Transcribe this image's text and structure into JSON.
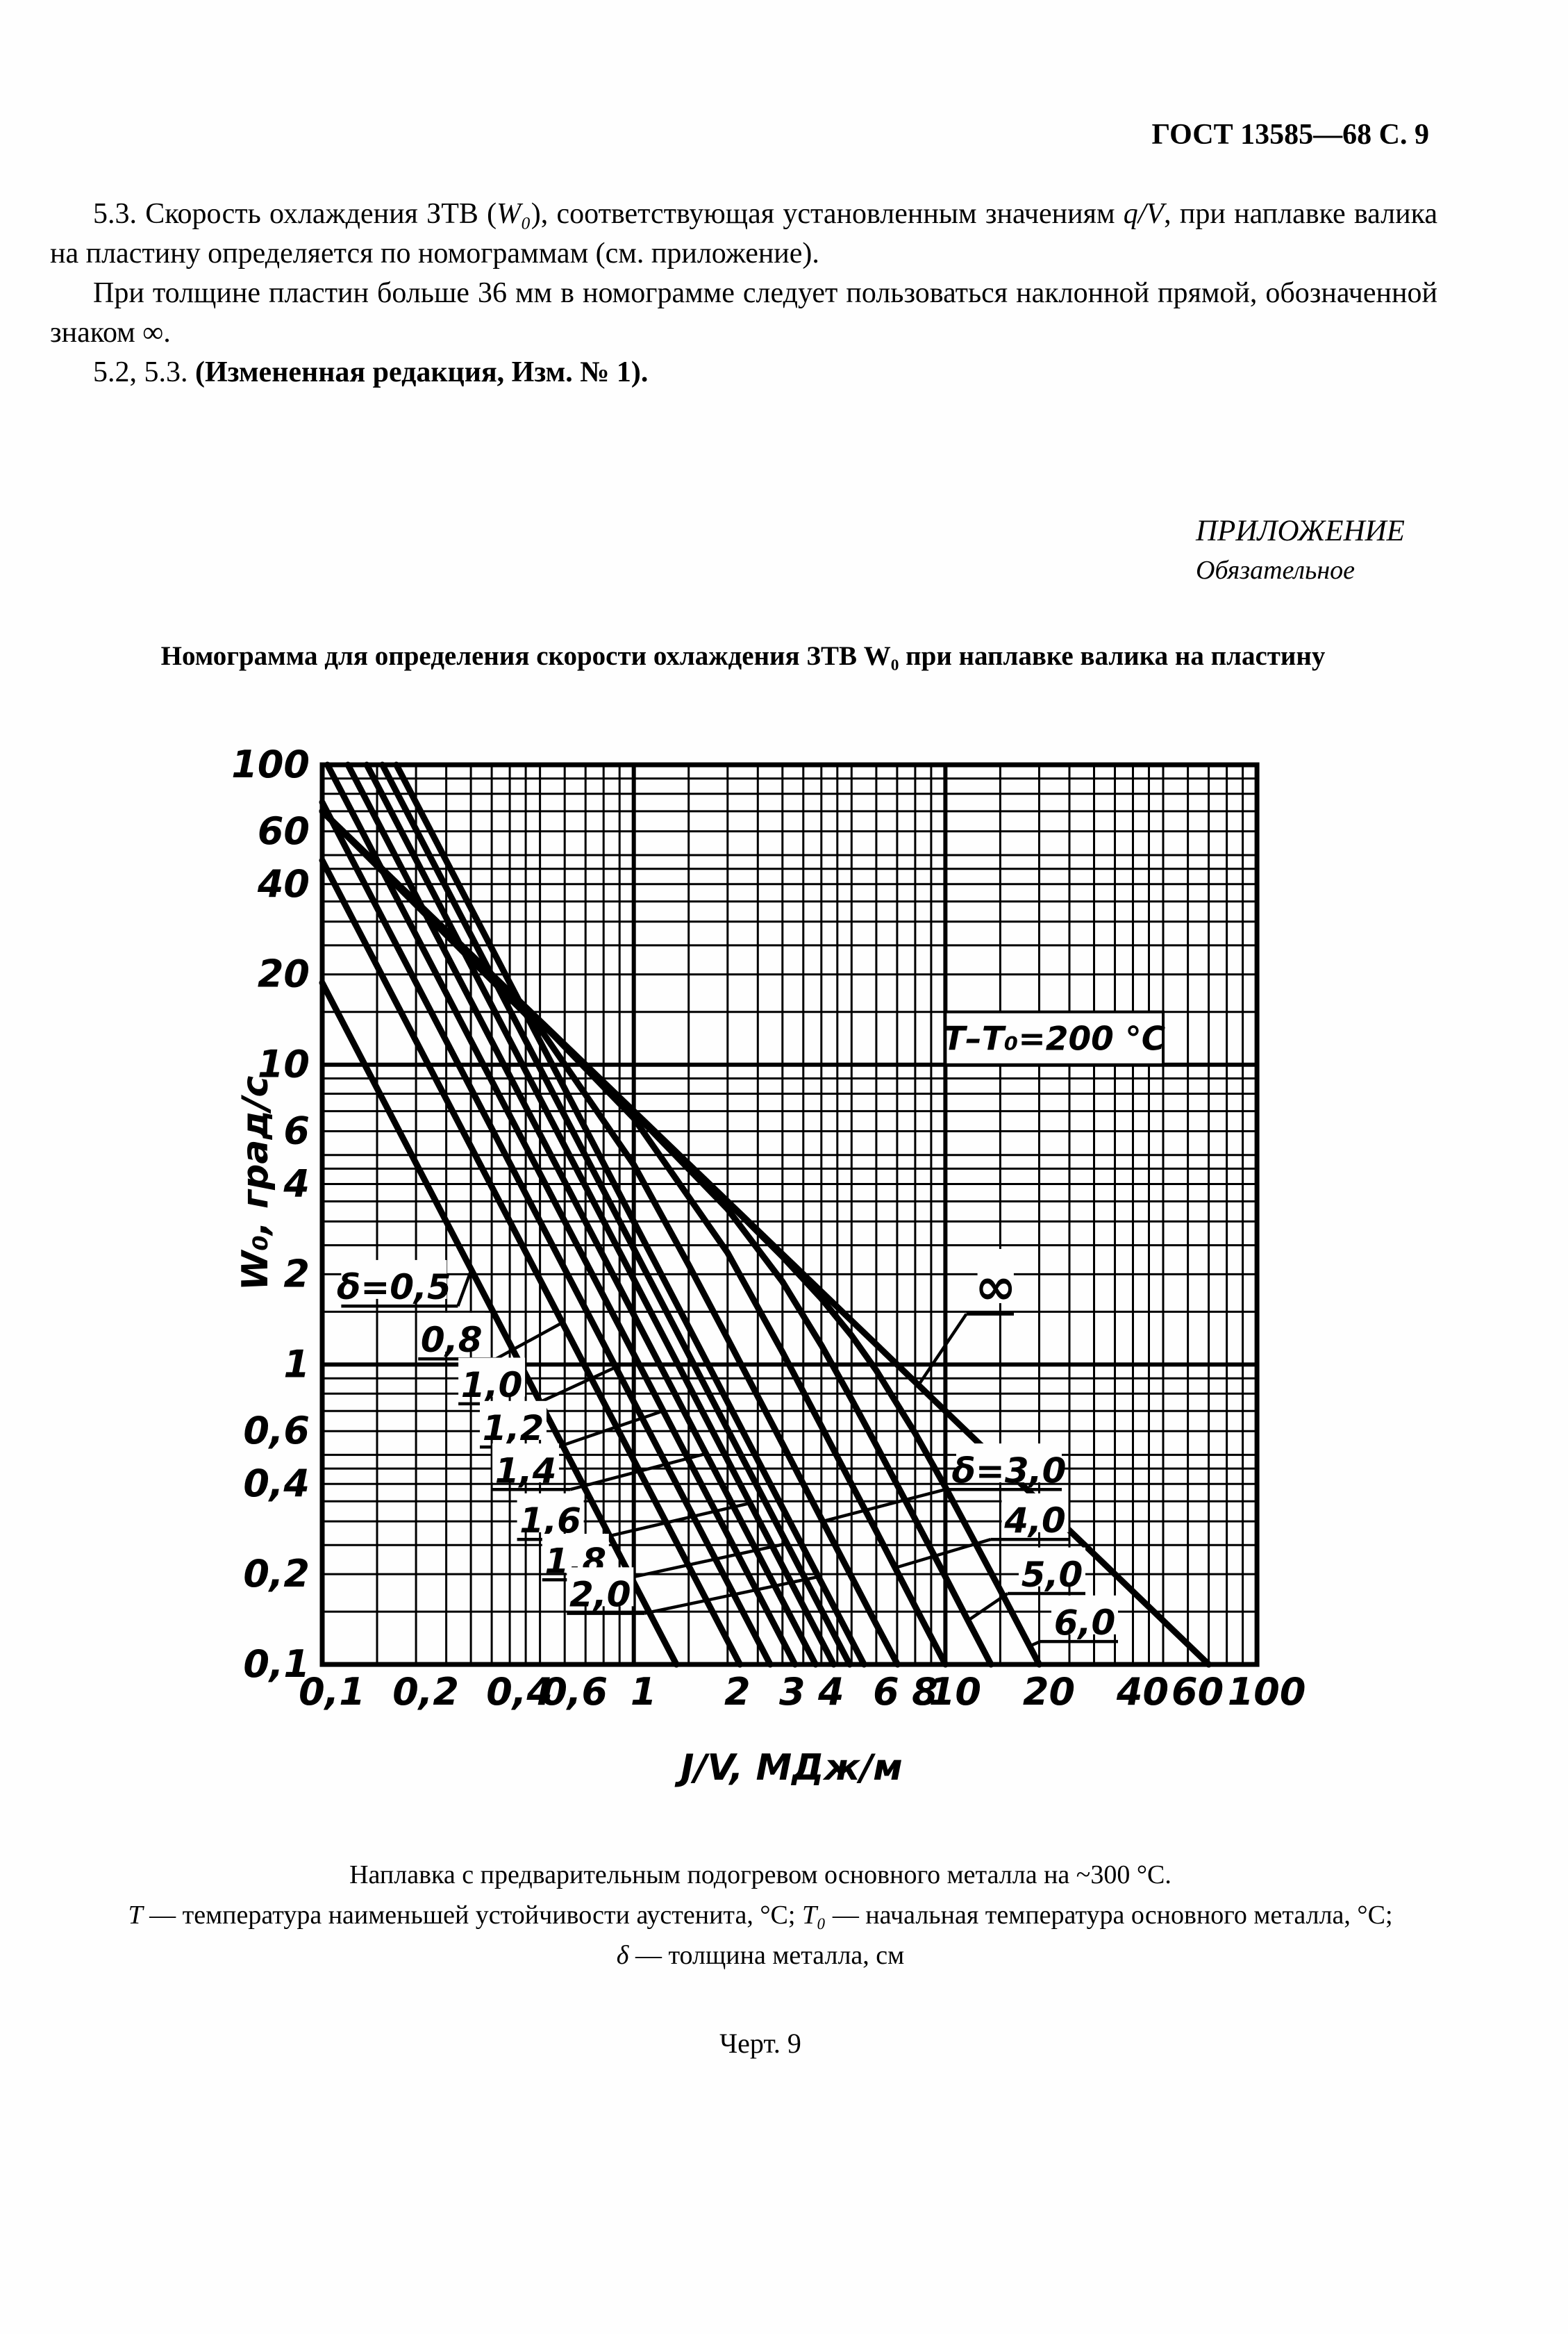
{
  "meta": {
    "ink_color": "#000000",
    "paper_color": "#fefefe"
  },
  "header": {
    "text": "ГОСТ 13585—68 С. 9"
  },
  "paragraphs": {
    "p1": {
      "a": "5.3. Скорость охлаждения ЗТВ (",
      "b": "W₀",
      "c": "), соответствующая установленным значениям ",
      "d": "q/V",
      "e": ", при наплавке валика на пластину определяется по номограммам (см. приложение)."
    },
    "p2": "При толщине пластин больше 36 мм в номограмме следует пользоваться наклонной прямой, обозначенной знаком ∞.",
    "p3": {
      "a": "5.2, 5.3. ",
      "b": "(Измененная редакция, Изм. № 1)."
    }
  },
  "appendix": {
    "line1": "ПРИЛОЖЕНИЕ",
    "line2": "Обязательное"
  },
  "figure": {
    "title": "Номограмма для определения скорости охлаждения ЗТВ W₀ при наплавке валика на пластину",
    "caption1": "Наплавка с предварительным подогревом основного металла на ~300 °С.",
    "caption2": {
      "a": "Т",
      "b": " — температура наименьшей устойчивости аустенита, °С; ",
      "c": "Т₀",
      "d": " — начальная температура основного металла, °С;"
    },
    "caption3": {
      "a": "δ",
      "b": " — толщина металла, см"
    },
    "number": "Черт. 9"
  },
  "chart_data": {
    "type": "line",
    "title": "Номограмма для определения скорости охлаждения ЗТВ W₀ при наплавке валика на пластину",
    "xlabel": "J/V, МДж/м",
    "ylabel": "W₀, град/с",
    "xscale": "log",
    "yscale": "log",
    "xlim": [
      0.1,
      100
    ],
    "ylim": [
      0.1,
      100
    ],
    "grid": true,
    "grid_minors": [
      1,
      1.5,
      2,
      2.5,
      3,
      3.5,
      4,
      4.5,
      5,
      6,
      7,
      8,
      9
    ],
    "x_ticks": [
      {
        "v": 0.1,
        "label": "0,1"
      },
      {
        "v": 0.2,
        "label": "0,2"
      },
      {
        "v": 0.4,
        "label": "0,4"
      },
      {
        "v": 0.6,
        "label": "0,6"
      },
      {
        "v": 1,
        "label": "1"
      },
      {
        "v": 2,
        "label": "2"
      },
      {
        "v": 3,
        "label": "3"
      },
      {
        "v": 4,
        "label": "4"
      },
      {
        "v": 6,
        "label": "6"
      },
      {
        "v": 8,
        "label": "8"
      },
      {
        "v": 10,
        "label": "10"
      },
      {
        "v": 20,
        "label": "20"
      },
      {
        "v": 40,
        "label": "40"
      },
      {
        "v": 60,
        "label": "60"
      },
      {
        "v": 100,
        "label": "100"
      }
    ],
    "y_ticks": [
      {
        "v": 100,
        "label": "100"
      },
      {
        "v": 60,
        "label": "60"
      },
      {
        "v": 40,
        "label": "40"
      },
      {
        "v": 20,
        "label": "20"
      },
      {
        "v": 10,
        "label": "10"
      },
      {
        "v": 6,
        "label": "6"
      },
      {
        "v": 4,
        "label": "4"
      },
      {
        "v": 2,
        "label": "2"
      },
      {
        "v": 1,
        "label": "1"
      },
      {
        "v": 0.6,
        "label": "0,6"
      },
      {
        "v": 0.4,
        "label": "0,4"
      },
      {
        "v": 0.2,
        "label": "0,2"
      },
      {
        "v": 0.1,
        "label": "0,1"
      }
    ],
    "annotation_box": {
      "text": "Т–Т₀=200 °С",
      "x": [
        10,
        50
      ],
      "y": [
        10,
        15
      ]
    },
    "series": [
      {
        "id": "delta-0-5",
        "name": "δ=0,5",
        "delta": 0.5,
        "points": [
          [
            0.1,
            18.75
          ],
          [
            1.37,
            0.1
          ]
        ]
      },
      {
        "id": "delta-0-8",
        "name": "δ=0,8",
        "delta": 0.8,
        "points": [
          [
            0.1,
            48
          ],
          [
            2.19,
            0.1
          ]
        ]
      },
      {
        "id": "delta-1-0",
        "name": "δ=1,0",
        "delta": 1.0,
        "points": [
          [
            0.1,
            75
          ],
          [
            2.74,
            0.1
          ]
        ]
      },
      {
        "id": "delta-1-2",
        "name": "δ=1,2",
        "delta": 1.2,
        "points": [
          [
            0.104,
            100
          ],
          [
            3.29,
            0.1
          ]
        ]
      },
      {
        "id": "delta-1-4",
        "name": "δ=1,4",
        "delta": 1.4,
        "points": [
          [
            0.121,
            100
          ],
          [
            3.83,
            0.1
          ]
        ]
      },
      {
        "id": "delta-1-6",
        "name": "δ=1,6",
        "delta": 1.6,
        "points": [
          [
            0.139,
            100
          ],
          [
            4.38,
            0.1
          ]
        ]
      },
      {
        "id": "delta-1-8",
        "name": "δ=1,8",
        "delta": 1.8,
        "points": [
          [
            0.156,
            100
          ],
          [
            4.93,
            0.1
          ]
        ]
      },
      {
        "id": "delta-2-0",
        "name": "δ=2,0",
        "delta": 2.0,
        "points": [
          [
            0.173,
            100
          ],
          [
            5.48,
            0.1
          ]
        ]
      },
      {
        "id": "delta-3-0",
        "name": "δ=3,0",
        "delta": 3.0,
        "points": [
          [
            0.1,
            70
          ],
          [
            0.5,
            13.2
          ],
          [
            1,
            4.64
          ],
          [
            1.5,
            2.15
          ],
          [
            2,
            1.22
          ],
          [
            3,
            0.544
          ],
          [
            4,
            0.306
          ],
          [
            5,
            0.196
          ],
          [
            6,
            0.136
          ],
          [
            7.02,
            0.1
          ]
        ]
      },
      {
        "id": "delta-4-0",
        "name": "δ=4,0",
        "delta": 4.0,
        "points": [
          [
            0.1,
            70
          ],
          [
            0.5,
            13.96
          ],
          [
            1,
            6.63
          ],
          [
            2,
            2.36
          ],
          [
            3,
            1.1
          ],
          [
            4,
            0.623
          ],
          [
            5,
            0.399
          ],
          [
            6,
            0.278
          ],
          [
            8,
            0.156
          ],
          [
            10,
            0.1
          ]
        ]
      },
      {
        "id": "delta-5-0",
        "name": "δ=5,0",
        "delta": 5.0,
        "points": [
          [
            0.1,
            70
          ],
          [
            1,
            6.93
          ],
          [
            2,
            3.3
          ],
          [
            3,
            1.89
          ],
          [
            4,
            1.16
          ],
          [
            5,
            0.766
          ],
          [
            6,
            0.538
          ],
          [
            8,
            0.305
          ],
          [
            10,
            0.196
          ],
          [
            12,
            0.136
          ],
          [
            14,
            0.1
          ]
        ]
      },
      {
        "id": "delta-6-0",
        "name": "δ=6,0",
        "delta": 6.0,
        "points": [
          [
            0.1,
            70
          ],
          [
            2,
            3.49
          ],
          [
            3,
            2.29
          ],
          [
            4,
            1.66
          ],
          [
            5,
            1.25
          ],
          [
            6,
            0.956
          ],
          [
            8,
            0.59
          ],
          [
            10,
            0.39
          ],
          [
            12,
            0.274
          ],
          [
            15,
            0.177
          ],
          [
            20,
            0.1
          ]
        ]
      },
      {
        "id": "infinity",
        "name": "∞",
        "delta": null,
        "points": [
          [
            0.1,
            70
          ],
          [
            70,
            0.1
          ]
        ]
      }
    ],
    "labels": [
      {
        "text": "δ=0,5",
        "x": 0.17,
        "y": 1.8,
        "side": "left",
        "tx": 0.301,
        "ty": 2.07
      },
      {
        "text": "0,8",
        "x": 0.26,
        "y": 1.2,
        "side": "left",
        "tx": 0.59,
        "ty": 1.38
      },
      {
        "text": "1,0",
        "x": 0.35,
        "y": 0.85,
        "side": "left",
        "tx": 0.875,
        "ty": 0.98
      },
      {
        "text": "1,2",
        "x": 0.41,
        "y": 0.61,
        "side": "left",
        "tx": 1.24,
        "ty": 0.7
      },
      {
        "text": "1,4",
        "x": 0.45,
        "y": 0.44,
        "side": "left",
        "tx": 1.71,
        "ty": 0.505
      },
      {
        "text": "1,6",
        "x": 0.54,
        "y": 0.3,
        "side": "left",
        "tx": 2.36,
        "ty": 0.345
      },
      {
        "text": "1,8",
        "x": 0.65,
        "y": 0.22,
        "side": "left",
        "tx": 3.1,
        "ty": 0.253
      },
      {
        "text": "2,0",
        "x": 0.78,
        "y": 0.17,
        "side": "left",
        "tx": 3.91,
        "ty": 0.196
      },
      {
        "text": "∞",
        "x": 14.5,
        "y": 1.8,
        "side": "right",
        "tx": 8.2,
        "ty": 0.854,
        "big": true
      },
      {
        "text": "δ=3,0",
        "x": 16,
        "y": 0.44,
        "side": "right",
        "tx": 4.04,
        "ty": 0.3
      },
      {
        "text": "4,0",
        "x": 19.4,
        "y": 0.3,
        "side": "right",
        "tx": 6.9,
        "ty": 0.21
      },
      {
        "text": "5,0",
        "x": 22,
        "y": 0.198,
        "side": "right",
        "tx": 11.8,
        "ty": 0.14
      },
      {
        "text": "6,0",
        "x": 28,
        "y": 0.137,
        "side": "right",
        "tx": 18.6,
        "ty": 0.115
      }
    ]
  }
}
